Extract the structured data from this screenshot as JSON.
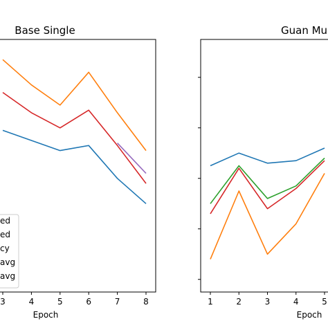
{
  "chart_data": [
    {
      "type": "line",
      "title": "Base Single",
      "xlabel": "Epoch",
      "ylabel": "",
      "x": [
        3,
        4,
        5,
        6,
        7,
        8
      ],
      "xlim": [
        2.7,
        8.35
      ],
      "ylim": [
        0,
        1
      ],
      "yticks_visible": false,
      "grid": false,
      "legend": {
        "placement": "lower-left",
        "entries": [
          "ed",
          "ed",
          "cy",
          "avg",
          "avg"
        ],
        "colors": [
          "#1f77b4",
          "#ff7f0e",
          "#2ca02c",
          "#d62728",
          "#9467bd"
        ]
      },
      "series": [
        {
          "color": "#ff7f0e",
          "points": [
            [
              3,
              0.92
            ],
            [
              4,
              0.82
            ],
            [
              5,
              0.74
            ],
            [
              6,
              0.87
            ],
            [
              7,
              0.71
            ],
            [
              8,
              0.56
            ]
          ]
        },
        {
          "color": "#d62728",
          "points": [
            [
              3,
              0.79
            ],
            [
              4,
              0.71
            ],
            [
              5,
              0.65
            ],
            [
              6,
              0.72
            ],
            [
              7,
              0.58
            ],
            [
              8,
              0.43
            ]
          ]
        },
        {
          "color": "#1f77b4",
          "points": [
            [
              3,
              0.64
            ],
            [
              4,
              0.6
            ],
            [
              5,
              0.56
            ],
            [
              6,
              0.58
            ],
            [
              7,
              0.45
            ],
            [
              8,
              0.35
            ]
          ]
        },
        {
          "color": "#9467bd",
          "points": [
            [
              7,
              0.59
            ],
            [
              8,
              0.47
            ]
          ]
        }
      ]
    },
    {
      "type": "line",
      "title": "Guan Mu",
      "xlabel": "Epoch",
      "ylabel": "",
      "x": [
        1,
        2,
        3,
        4,
        5
      ],
      "xticks": [
        1,
        2,
        3,
        4,
        5
      ],
      "xlim": [
        0.65,
        5.4
      ],
      "ylim": [
        0,
        1
      ],
      "yticks_visible": false,
      "grid": false,
      "series": [
        {
          "color": "#1f77b4",
          "points": [
            [
              1,
              0.5
            ],
            [
              2,
              0.55
            ],
            [
              3,
              0.51
            ],
            [
              4,
              0.52
            ],
            [
              5,
              0.57
            ]
          ]
        },
        {
          "color": "#2ca02c",
          "points": [
            [
              1,
              0.35
            ],
            [
              2,
              0.5
            ],
            [
              3,
              0.37
            ],
            [
              4,
              0.42
            ],
            [
              5,
              0.53
            ]
          ]
        },
        {
          "color": "#d62728",
          "points": [
            [
              1,
              0.31
            ],
            [
              2,
              0.49
            ],
            [
              3,
              0.33
            ],
            [
              4,
              0.41
            ],
            [
              5,
              0.52
            ]
          ]
        },
        {
          "color": "#ff7f0e",
          "points": [
            [
              1,
              0.13
            ],
            [
              2,
              0.4
            ],
            [
              3,
              0.15
            ],
            [
              4,
              0.27
            ],
            [
              5,
              0.47
            ]
          ]
        }
      ]
    }
  ]
}
